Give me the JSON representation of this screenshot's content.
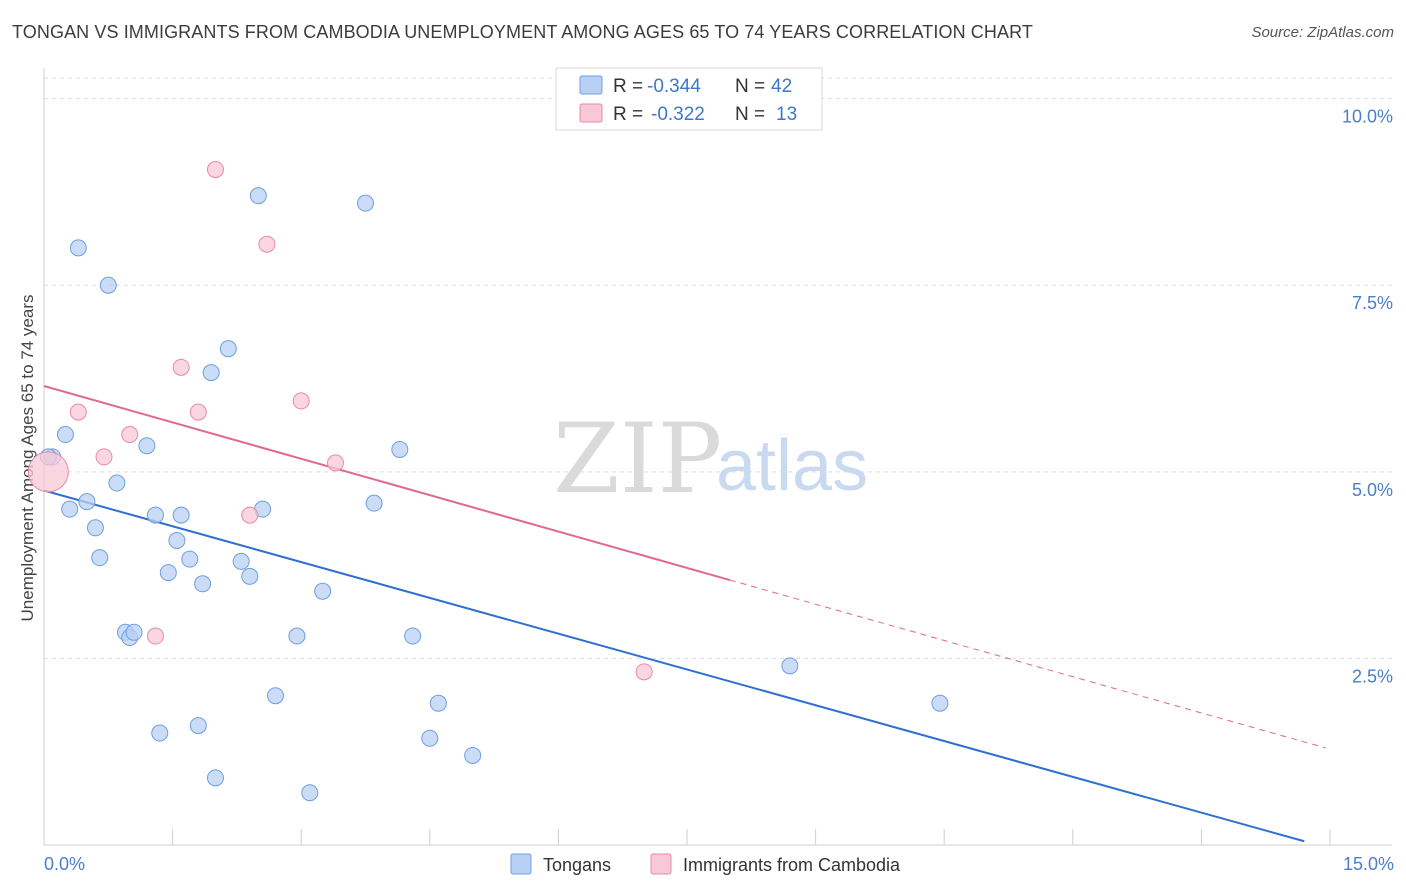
{
  "header": {
    "title": "TONGAN VS IMMIGRANTS FROM CAMBODIA UNEMPLOYMENT AMONG AGES 65 TO 74 YEARS CORRELATION CHART",
    "source": "Source: ZipAtlas.com"
  },
  "watermark": {
    "zip": "ZIP",
    "atlas": "atlas"
  },
  "colors": {
    "tongan_fill": "#b8d0f3",
    "tongan_stroke": "#6f9fe0",
    "tongan_line": "#2e6fd0",
    "cambodia_fill": "#f8c8d6",
    "cambodia_stroke": "#e88aa8",
    "cambodia_line": "#e06890",
    "grid": "#dddddd",
    "axis_text": "#4a7fc8"
  },
  "chart_data": {
    "type": "scatter",
    "title": "TONGAN VS IMMIGRANTS FROM CAMBODIA UNEMPLOYMENT AMONG AGES 65 TO 74 YEARS CORRELATION CHART",
    "xlabel": "",
    "ylabel": "Unemployment Among Ages 65 to 74 years",
    "xlim": [
      0,
      15
    ],
    "ylim": [
      0,
      10.25
    ],
    "x_tick_labels": [
      "0.0%",
      "15.0%"
    ],
    "y_ticks": [
      2.5,
      5.0,
      7.5,
      10.0
    ],
    "y_tick_labels": [
      "2.5%",
      "5.0%",
      "7.5%",
      "10.0%"
    ],
    "grid": true,
    "legend_top": [
      {
        "r_label": "R =",
        "r_value": "-0.344",
        "n_label": "N =",
        "n_value": "42"
      },
      {
        "r_label": "R =",
        "r_value": "-0.322",
        "n_label": "N =",
        "n_value": "13"
      }
    ],
    "series": [
      {
        "name": "Tongans",
        "points": [
          {
            "x": 0.1,
            "y": 5.2
          },
          {
            "x": 0.25,
            "y": 5.5
          },
          {
            "x": 0.3,
            "y": 4.5
          },
          {
            "x": 0.4,
            "y": 8.0
          },
          {
            "x": 0.5,
            "y": 4.6
          },
          {
            "x": 0.6,
            "y": 4.25
          },
          {
            "x": 0.65,
            "y": 3.85
          },
          {
            "x": 0.75,
            "y": 7.5
          },
          {
            "x": 0.85,
            "y": 4.85
          },
          {
            "x": 0.95,
            "y": 2.85
          },
          {
            "x": 1.0,
            "y": 2.78
          },
          {
            "x": 1.05,
            "y": 2.85
          },
          {
            "x": 1.2,
            "y": 5.35
          },
          {
            "x": 1.3,
            "y": 4.42
          },
          {
            "x": 1.35,
            "y": 1.5
          },
          {
            "x": 1.45,
            "y": 3.65
          },
          {
            "x": 1.55,
            "y": 4.08
          },
          {
            "x": 1.6,
            "y": 4.42
          },
          {
            "x": 1.7,
            "y": 3.83
          },
          {
            "x": 1.8,
            "y": 1.6
          },
          {
            "x": 1.85,
            "y": 3.5
          },
          {
            "x": 1.95,
            "y": 6.33
          },
          {
            "x": 2.0,
            "y": 0.9
          },
          {
            "x": 2.15,
            "y": 6.65
          },
          {
            "x": 2.3,
            "y": 3.8
          },
          {
            "x": 2.4,
            "y": 3.6
          },
          {
            "x": 2.5,
            "y": 8.7
          },
          {
            "x": 2.55,
            "y": 4.5
          },
          {
            "x": 2.7,
            "y": 2.0
          },
          {
            "x": 2.95,
            "y": 2.8
          },
          {
            "x": 3.1,
            "y": 0.7
          },
          {
            "x": 3.25,
            "y": 3.4
          },
          {
            "x": 3.75,
            "y": 8.6
          },
          {
            "x": 3.85,
            "y": 4.58
          },
          {
            "x": 4.15,
            "y": 5.3
          },
          {
            "x": 4.3,
            "y": 2.8
          },
          {
            "x": 4.5,
            "y": 1.43
          },
          {
            "x": 4.6,
            "y": 1.9
          },
          {
            "x": 5.0,
            "y": 1.2
          },
          {
            "x": 8.7,
            "y": 2.4
          },
          {
            "x": 10.45,
            "y": 1.9
          },
          {
            "x": 0.05,
            "y": 5.2
          }
        ],
        "trend": {
          "x": [
            0,
            14.7
          ],
          "y": [
            4.75,
            0.05
          ]
        }
      },
      {
        "name": "Immigrants from Cambodia",
        "points": [
          {
            "x": 0.05,
            "y": 5.0
          },
          {
            "x": 0.4,
            "y": 5.8
          },
          {
            "x": 0.7,
            "y": 5.2
          },
          {
            "x": 1.0,
            "y": 5.5
          },
          {
            "x": 1.3,
            "y": 2.8
          },
          {
            "x": 1.6,
            "y": 6.4
          },
          {
            "x": 1.8,
            "y": 5.8
          },
          {
            "x": 2.0,
            "y": 9.05
          },
          {
            "x": 2.4,
            "y": 4.42
          },
          {
            "x": 2.6,
            "y": 8.05
          },
          {
            "x": 3.0,
            "y": 5.95
          },
          {
            "x": 3.4,
            "y": 5.12
          },
          {
            "x": 7.0,
            "y": 2.32
          }
        ],
        "trend": {
          "x": [
            0,
            8.0
          ],
          "y": [
            6.15,
            3.55
          ]
        },
        "trend_extension": {
          "x": [
            8.0,
            14.95
          ],
          "y": [
            3.55,
            1.3
          ]
        }
      }
    ]
  },
  "legend_bottom": [
    {
      "label": "Tongans"
    },
    {
      "label": "Immigrants from Cambodia"
    }
  ]
}
